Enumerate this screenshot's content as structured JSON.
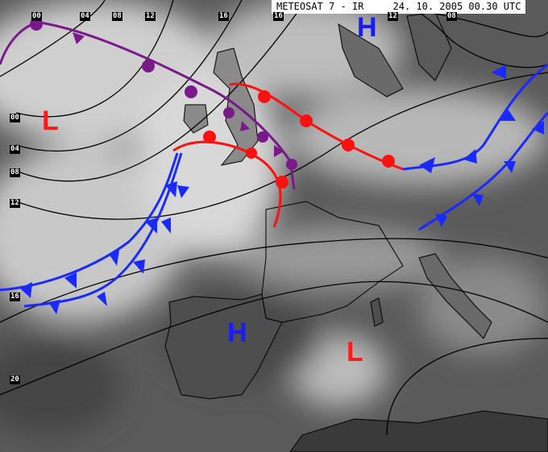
{
  "header": {
    "title": "METEOSAT 7 - IR",
    "datetime": "24. 10. 2005 00.30 UTC"
  },
  "isobar_labels": {
    "top": [
      "00",
      "04",
      "08",
      "12",
      "16",
      "16",
      "12",
      "08"
    ],
    "left": [
      "00",
      "04",
      "08",
      "12",
      "16",
      "20"
    ]
  },
  "pressure_centers": [
    {
      "label": "H",
      "type": "high"
    },
    {
      "label": "L",
      "type": "low"
    },
    {
      "label": "H",
      "type": "high"
    },
    {
      "label": "L",
      "type": "low"
    }
  ],
  "colors": {
    "high": "#1a1aff",
    "low": "#ff1a1a",
    "cold_front": "#1a2aff",
    "warm_front": "#ff1010",
    "occluded_front": "#7a1a8a",
    "isobar": "#000000"
  }
}
